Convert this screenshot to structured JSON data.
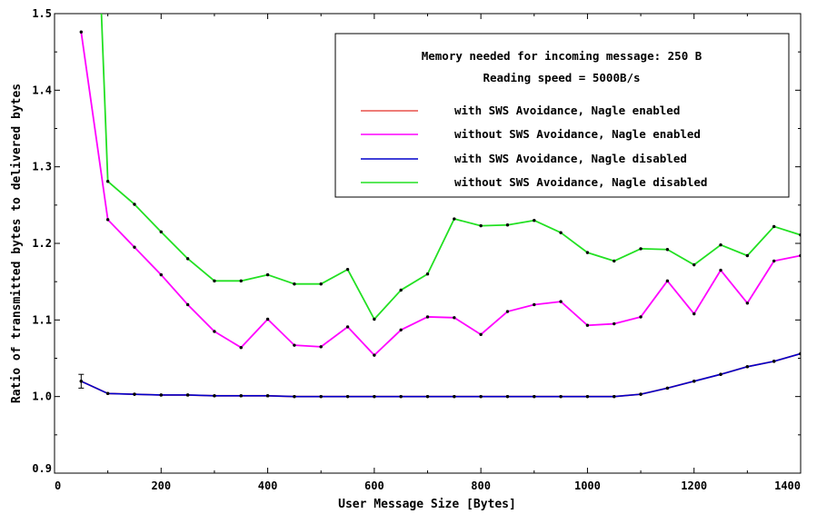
{
  "chart_data": {
    "type": "line",
    "xlabel": "User Message Size [Bytes]",
    "ylabel": "Ratio of transmitted bytes to delivered bytes",
    "xlim": [
      0,
      1400
    ],
    "ylim": [
      0.9,
      1.5
    ],
    "xticks": [
      0,
      200,
      400,
      600,
      800,
      1000,
      1200,
      1400
    ],
    "yticks": [
      0.9,
      1.0,
      1.1,
      1.2,
      1.3,
      1.4,
      1.5
    ],
    "xtick_labels": [
      "0",
      "200",
      "400",
      "600",
      "800",
      "1000",
      "1200",
      "1400"
    ],
    "ytick_labels": [
      "0.9",
      "1.0",
      "1.1",
      "1.2",
      "1.3",
      "1.4",
      "1.5"
    ],
    "grid": false,
    "legend_position": "top-right",
    "legend_header": [
      "Memory needed for incoming message: 250 B",
      "Reading speed = 5000B/s"
    ],
    "series": [
      {
        "name": "with SWS Avoidance, Nagle enabled",
        "color": "#e8504a",
        "x": [
          50,
          100,
          150,
          200,
          250,
          300,
          350,
          400,
          450,
          500,
          550,
          600,
          650,
          700,
          750,
          800,
          850,
          900,
          950,
          1000,
          1050,
          1100,
          1150,
          1200,
          1250,
          1300,
          1350,
          1400
        ],
        "y": [
          1.02,
          1.004,
          1.003,
          1.002,
          1.002,
          1.001,
          1.001,
          1.001,
          1.0,
          1.0,
          1.0,
          1.0,
          1.0,
          1.0,
          1.0,
          1.0,
          1.0,
          1.0,
          1.0,
          1.0,
          1.0,
          1.003,
          1.011,
          1.02,
          1.029,
          1.039,
          1.046,
          1.056
        ]
      },
      {
        "name": "without SWS Avoidance, Nagle enabled",
        "color": "#ff00ff",
        "x": [
          50,
          100,
          150,
          200,
          250,
          300,
          350,
          400,
          450,
          500,
          550,
          600,
          650,
          700,
          750,
          800,
          850,
          900,
          950,
          1000,
          1050,
          1100,
          1150,
          1200,
          1250,
          1300,
          1350,
          1400
        ],
        "y": [
          1.476,
          1.231,
          1.195,
          1.159,
          1.12,
          1.085,
          1.064,
          1.101,
          1.067,
          1.065,
          1.091,
          1.054,
          1.087,
          1.104,
          1.103,
          1.081,
          1.111,
          1.12,
          1.124,
          1.093,
          1.095,
          1.104,
          1.151,
          1.108,
          1.165,
          1.122,
          1.177,
          1.184
        ]
      },
      {
        "name": "with SWS Avoidance, Nagle disabled",
        "color": "#0000cc",
        "x": [
          50,
          100,
          150,
          200,
          250,
          300,
          350,
          400,
          450,
          500,
          550,
          600,
          650,
          700,
          750,
          800,
          850,
          900,
          950,
          1000,
          1050,
          1100,
          1150,
          1200,
          1250,
          1300,
          1350,
          1400
        ],
        "y": [
          1.02,
          1.004,
          1.003,
          1.002,
          1.002,
          1.001,
          1.001,
          1.001,
          1.0,
          1.0,
          1.0,
          1.0,
          1.0,
          1.0,
          1.0,
          1.0,
          1.0,
          1.0,
          1.0,
          1.0,
          1.0,
          1.003,
          1.011,
          1.02,
          1.029,
          1.039,
          1.046,
          1.056
        ]
      },
      {
        "name": "without SWS Avoidance, Nagle disabled",
        "color": "#22e022",
        "x": [
          88,
          100,
          150,
          200,
          250,
          300,
          350,
          400,
          450,
          500,
          550,
          600,
          650,
          700,
          750,
          800,
          850,
          900,
          950,
          1000,
          1050,
          1100,
          1150,
          1200,
          1250,
          1300,
          1350,
          1400
        ],
        "y": [
          1.5,
          1.281,
          1.251,
          1.215,
          1.18,
          1.151,
          1.151,
          1.159,
          1.147,
          1.147,
          1.166,
          1.101,
          1.139,
          1.16,
          1.232,
          1.223,
          1.224,
          1.23,
          1.214,
          1.188,
          1.177,
          1.193,
          1.192,
          1.172,
          1.198,
          1.184,
          1.222,
          1.211
        ]
      }
    ]
  }
}
